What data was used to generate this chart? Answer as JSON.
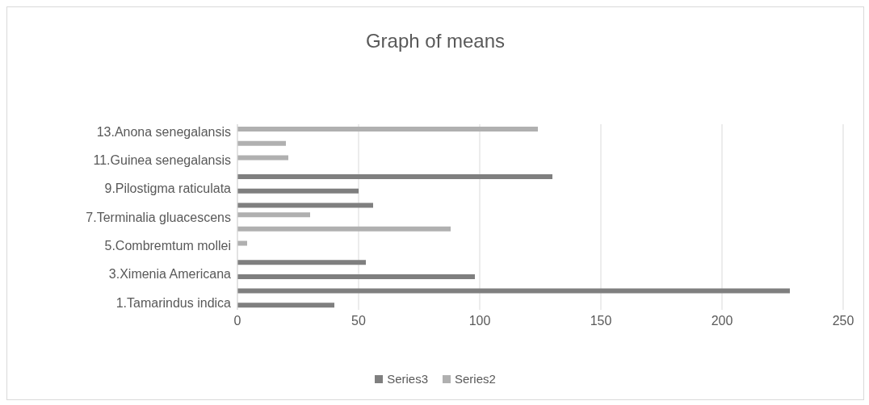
{
  "chart_data": {
    "type": "bar",
    "orientation": "horizontal",
    "title": "Graph of means",
    "categories": [
      "13.Anona senegalansis",
      null,
      "11.Guinea senegalansis",
      null,
      "9.Pilostigma raticulata",
      null,
      "7.Terminalia gluacescens",
      null,
      "5.Combremtum mollei",
      null,
      "3.Ximenia Americana",
      null,
      "1.Tamarindus indica"
    ],
    "series": [
      {
        "name": "Series3",
        "color": "#7f7f7f",
        "values": [
          null,
          null,
          null,
          130,
          50,
          56,
          null,
          null,
          null,
          53,
          98,
          228,
          40
        ]
      },
      {
        "name": "Series2",
        "color": "#b0b0b0",
        "values": [
          124,
          20,
          21,
          null,
          null,
          null,
          30,
          88,
          4,
          null,
          null,
          null,
          null
        ]
      }
    ],
    "xlim": [
      0,
      250
    ],
    "xticks": [
      0,
      50,
      100,
      150,
      200,
      250
    ],
    "grid": "x",
    "legend": "bottom"
  }
}
